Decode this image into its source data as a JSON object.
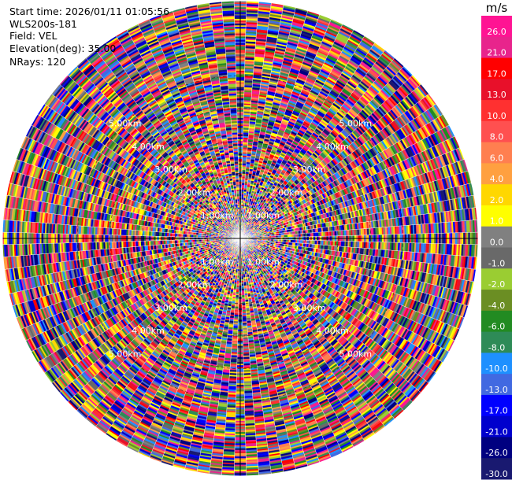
{
  "info": {
    "start_time": "Start time: 2026/01/11 01:05:56",
    "instrument": "WLS200s-181",
    "field": "Field: VEL",
    "elevation": "Elevation(deg): 35.00",
    "nrays": "NRays: 120"
  },
  "chart_data": {
    "type": "heatmap",
    "subtype": "ppi-polar",
    "field": "VEL",
    "nrays": 120,
    "elevation_deg": 35.0,
    "range_ring_labels": [
      "1.00km",
      "2.00km",
      "3.00km",
      "4.00km",
      "5.00km"
    ],
    "range_max_km": 7.3,
    "gate_spacing_km": 0.05,
    "colorbar": {
      "unit": "m/s",
      "ticks": [
        "26.0",
        "21.0",
        "17.0",
        "13.0",
        "10.0",
        "8.0",
        "6.0",
        "4.0",
        "2.0",
        "1.0",
        "0.0",
        "-1.0",
        "-2.0",
        "-4.0",
        "-6.0",
        "-8.0",
        "-10.0",
        "-13.0",
        "-17.0",
        "-21.0",
        "-26.0",
        "-30.0"
      ],
      "colors": [
        "#ff1493",
        "#e8248c",
        "#ff0000",
        "#e8102a",
        "#ff3030",
        "#ff5050",
        "#ff7f50",
        "#ffa040",
        "#ffd700",
        "#ffff00",
        "#808080",
        "#696969",
        "#9acd32",
        "#6b8e23",
        "#228b22",
        "#2e8b57",
        "#1e90ff",
        "#4169e1",
        "#0000ff",
        "#0000cd",
        "#000080",
        "#191970"
      ]
    },
    "note": "random-looking velocity field (noise) over all gates"
  }
}
